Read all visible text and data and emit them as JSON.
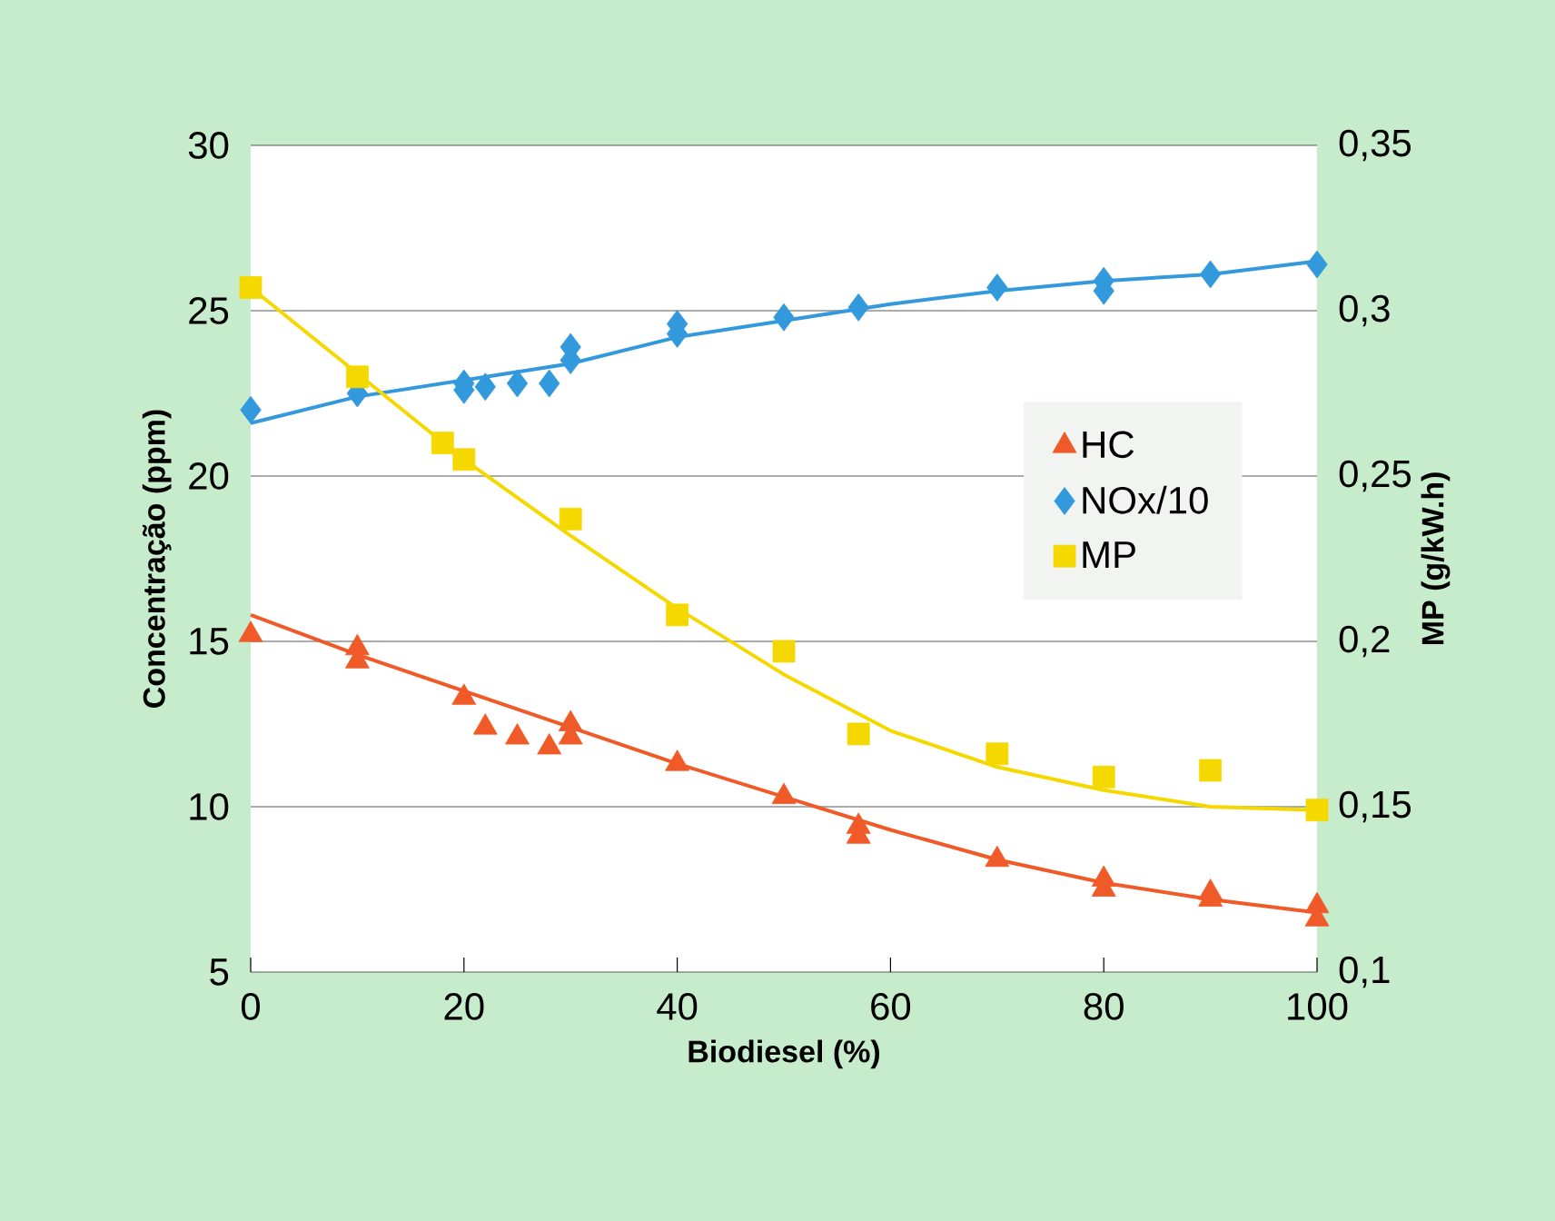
{
  "chart_data": {
    "type": "scatter",
    "xlabel": "Biodiesel (%)",
    "ylabel": "Concentração (ppm)",
    "y2label": "MP (g/kW.h)",
    "xlim": [
      0,
      100
    ],
    "xticks": [
      0,
      20,
      40,
      60,
      80,
      100
    ],
    "ylim": [
      5,
      30
    ],
    "yticks": [
      5,
      10,
      15,
      20,
      25,
      30
    ],
    "y2lim": [
      0.1,
      0.35
    ],
    "y2ticks": [
      {
        "value": 0.1,
        "label": "0,1"
      },
      {
        "value": 0.15,
        "label": "0,15"
      },
      {
        "value": 0.2,
        "label": "0,2"
      },
      {
        "value": 0.25,
        "label": "0,25"
      },
      {
        "value": 0.3,
        "label": "0,3"
      },
      {
        "value": 0.35,
        "label": "0,35"
      }
    ],
    "grid": "y",
    "legend": "right",
    "series": [
      {
        "name": "HC",
        "marker": "triangle",
        "color": "#f05a28",
        "x": [
          0,
          10,
          10,
          20,
          22,
          25,
          28,
          30,
          30,
          40,
          50,
          57,
          57,
          70,
          80,
          80,
          90,
          90,
          100,
          100
        ],
        "values": [
          15.2,
          14.8,
          14.4,
          13.3,
          12.4,
          12.1,
          11.8,
          12.5,
          12.1,
          11.3,
          10.3,
          9.4,
          9.1,
          8.4,
          7.8,
          7.5,
          7.4,
          7.2,
          7.0,
          6.6
        ]
      },
      {
        "name": "NOx/10",
        "marker": "diamond",
        "color": "#3399dd",
        "x": [
          0,
          10,
          20,
          20,
          22,
          25,
          28,
          30,
          30,
          40,
          40,
          50,
          57,
          70,
          80,
          80,
          90,
          100
        ],
        "values": [
          22.0,
          22.5,
          22.8,
          22.6,
          22.7,
          22.8,
          22.8,
          23.5,
          23.9,
          24.6,
          24.3,
          24.8,
          25.1,
          25.7,
          25.9,
          25.6,
          26.1,
          26.4
        ]
      },
      {
        "name": "MP",
        "marker": "square",
        "axis": "y2",
        "color": "#f5d800",
        "x": [
          0,
          10,
          18,
          20,
          30,
          40,
          50,
          57,
          70,
          80,
          90,
          100
        ],
        "values": [
          0.307,
          0.28,
          0.26,
          0.255,
          0.237,
          0.208,
          0.197,
          0.172,
          0.166,
          0.159,
          0.161,
          0.149
        ]
      },
      {
        "type": "line",
        "marker": "none",
        "color": "#f05a28",
        "x": [
          0,
          10,
          20,
          30,
          40,
          50,
          60,
          70,
          80,
          90,
          100
        ],
        "values": [
          15.8,
          14.6,
          13.5,
          12.4,
          11.3,
          10.3,
          9.3,
          8.4,
          7.7,
          7.2,
          6.8
        ]
      },
      {
        "type": "line",
        "marker": "none",
        "color": "#3399dd",
        "x": [
          0,
          10,
          20,
          30,
          40,
          50,
          60,
          70,
          80,
          90,
          100
        ],
        "values": [
          21.6,
          22.4,
          22.9,
          23.4,
          24.2,
          24.7,
          25.2,
          25.6,
          25.9,
          26.1,
          26.5
        ]
      },
      {
        "type": "line",
        "marker": "none",
        "axis": "y2",
        "color": "#f5d800",
        "x": [
          0,
          10,
          20,
          30,
          40,
          50,
          60,
          70,
          80,
          90,
          100
        ],
        "values": [
          0.307,
          0.281,
          0.255,
          0.232,
          0.21,
          0.19,
          0.173,
          0.162,
          0.155,
          0.15,
          0.149
        ]
      }
    ]
  }
}
